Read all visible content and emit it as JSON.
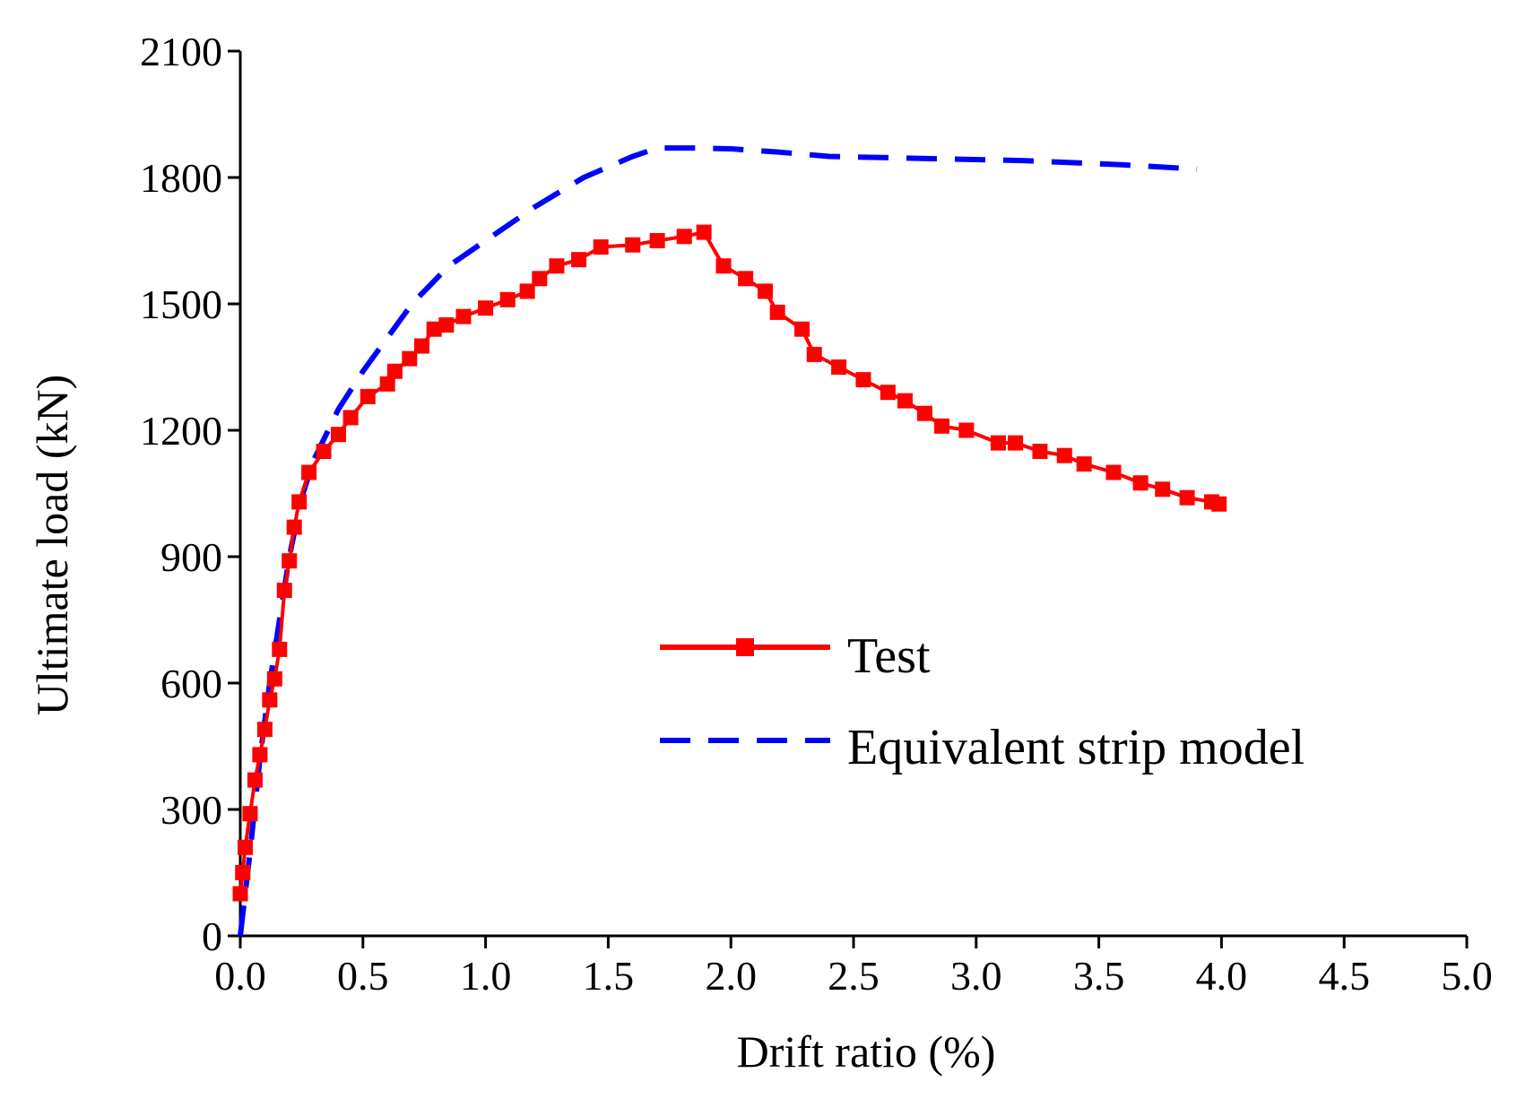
{
  "chart_data": {
    "type": "line",
    "title": "",
    "xlabel": "Drift ratio (%)",
    "ylabel": "Ultimate load (kN)",
    "xlim": [
      0,
      5
    ],
    "ylim": [
      0,
      2100
    ],
    "xticks": [
      0.0,
      0.5,
      1.0,
      1.5,
      2.0,
      2.5,
      3.0,
      3.5,
      4.0,
      4.5,
      5.0
    ],
    "xtick_labels": [
      "0.0",
      "0.5",
      "1.0",
      "1.5",
      "2.0",
      "2.5",
      "3.0",
      "3.5",
      "4.0",
      "4.5",
      "5.0"
    ],
    "yticks": [
      0,
      300,
      600,
      900,
      1200,
      1500,
      1800,
      2100
    ],
    "ytick_labels": [
      "0",
      "300",
      "600",
      "900",
      "1200",
      "1500",
      "1800",
      "2100"
    ],
    "grid": false,
    "legend_position": "center-right",
    "series": [
      {
        "name": "Test",
        "color": "#ff0000",
        "style": "solid-square-markers",
        "x": [
          0.0,
          0.01,
          0.02,
          0.04,
          0.06,
          0.08,
          0.1,
          0.12,
          0.14,
          0.16,
          0.18,
          0.2,
          0.22,
          0.24,
          0.28,
          0.34,
          0.4,
          0.45,
          0.52,
          0.6,
          0.63,
          0.69,
          0.74,
          0.79,
          0.84,
          0.91,
          1.0,
          1.09,
          1.17,
          1.22,
          1.29,
          1.38,
          1.47,
          1.6,
          1.7,
          1.81,
          1.89,
          1.97,
          2.06,
          2.14,
          2.19,
          2.29,
          2.34,
          2.44,
          2.54,
          2.64,
          2.71,
          2.79,
          2.86,
          2.96,
          3.09,
          3.16,
          3.26,
          3.36,
          3.44,
          3.56,
          3.67,
          3.76,
          3.86,
          3.96,
          3.99
        ],
        "y": [
          100,
          150,
          210,
          290,
          370,
          430,
          490,
          560,
          610,
          680,
          820,
          890,
          970,
          1030,
          1100,
          1150,
          1190,
          1230,
          1280,
          1310,
          1340,
          1370,
          1400,
          1440,
          1450,
          1470,
          1490,
          1510,
          1530,
          1560,
          1590,
          1605,
          1635,
          1640,
          1650,
          1660,
          1670,
          1590,
          1560,
          1530,
          1480,
          1440,
          1380,
          1350,
          1320,
          1290,
          1270,
          1240,
          1210,
          1200,
          1170,
          1170,
          1150,
          1140,
          1120,
          1100,
          1075,
          1060,
          1040,
          1030,
          1025
        ]
      },
      {
        "name": "Equivalent strip model",
        "color": "#0000ff",
        "style": "dashed",
        "x": [
          0.0,
          0.04,
          0.08,
          0.12,
          0.16,
          0.2,
          0.25,
          0.3,
          0.4,
          0.5,
          0.6,
          0.7,
          0.85,
          1.0,
          1.2,
          1.4,
          1.6,
          1.7,
          1.85,
          2.0,
          2.2,
          2.4,
          2.8,
          3.2,
          3.6,
          3.9
        ],
        "y": [
          0,
          200,
          420,
          600,
          750,
          900,
          1040,
          1130,
          1250,
          1340,
          1420,
          1500,
          1590,
          1650,
          1730,
          1800,
          1850,
          1870,
          1870,
          1868,
          1860,
          1850,
          1845,
          1840,
          1830,
          1820
        ]
      }
    ]
  }
}
